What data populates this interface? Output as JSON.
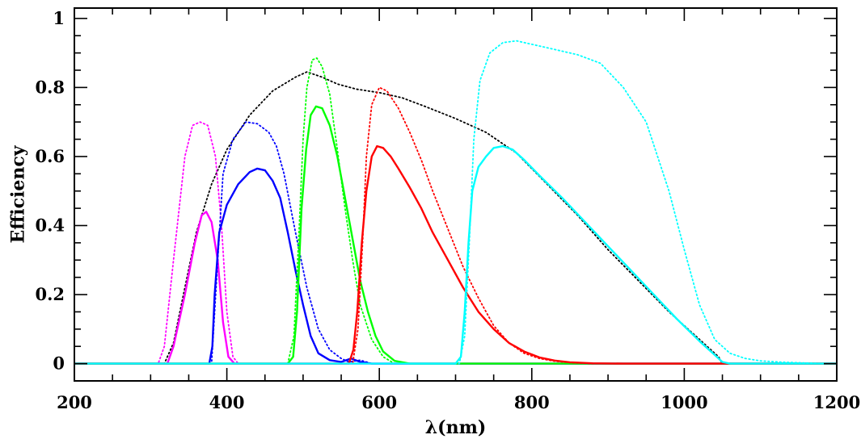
{
  "chart_data": {
    "type": "line",
    "title": "",
    "xlabel": "λ(nm)",
    "ylabel": "Efficiency",
    "xlim": [
      200,
      1200
    ],
    "ylim": [
      -0.05,
      1.03
    ],
    "x_ticks": [
      200,
      400,
      600,
      800,
      1000,
      1200
    ],
    "x_tick_labels": [
      "200",
      "400",
      "600",
      "800",
      "1000",
      "1200"
    ],
    "y_ticks": [
      0,
      0.2,
      0.4,
      0.6,
      0.8,
      1
    ],
    "y_tick_labels": [
      "0",
      "0.2",
      "0.4",
      "0.6",
      "0.8",
      "1"
    ],
    "grid": false,
    "legend": "none",
    "series": [
      {
        "color": "#000000",
        "style": "dotted",
        "points": [
          [
            200,
            0
          ],
          [
            318,
            0
          ],
          [
            330,
            0.06
          ],
          [
            345,
            0.22
          ],
          [
            360,
            0.38
          ],
          [
            380,
            0.52
          ],
          [
            400,
            0.62
          ],
          [
            430,
            0.72
          ],
          [
            460,
            0.79
          ],
          [
            490,
            0.83
          ],
          [
            505,
            0.845
          ],
          [
            525,
            0.83
          ],
          [
            545,
            0.81
          ],
          [
            570,
            0.795
          ],
          [
            600,
            0.785
          ],
          [
            630,
            0.77
          ],
          [
            660,
            0.745
          ],
          [
            700,
            0.71
          ],
          [
            740,
            0.67
          ],
          [
            780,
            0.61
          ],
          [
            820,
            0.52
          ],
          [
            860,
            0.43
          ],
          [
            900,
            0.33
          ],
          [
            940,
            0.24
          ],
          [
            980,
            0.15
          ],
          [
            1020,
            0.07
          ],
          [
            1045,
            0.02
          ],
          [
            1050,
            0
          ]
        ]
      },
      {
        "color": "#ff00ff",
        "style": "dotted",
        "points": [
          [
            200,
            0
          ],
          [
            310,
            0
          ],
          [
            318,
            0.05
          ],
          [
            330,
            0.3
          ],
          [
            345,
            0.6
          ],
          [
            355,
            0.69
          ],
          [
            365,
            0.7
          ],
          [
            375,
            0.69
          ],
          [
            385,
            0.6
          ],
          [
            393,
            0.4
          ],
          [
            400,
            0.15
          ],
          [
            408,
            0.02
          ],
          [
            415,
            0
          ],
          [
            1200,
            0
          ]
        ]
      },
      {
        "color": "#ff00ff",
        "style": "solid",
        "points": [
          [
            200,
            0
          ],
          [
            322,
            0
          ],
          [
            330,
            0.05
          ],
          [
            345,
            0.2
          ],
          [
            358,
            0.35
          ],
          [
            367,
            0.43
          ],
          [
            373,
            0.44
          ],
          [
            380,
            0.41
          ],
          [
            388,
            0.3
          ],
          [
            395,
            0.12
          ],
          [
            402,
            0.02
          ],
          [
            410,
            0
          ],
          [
            1200,
            0
          ]
        ]
      },
      {
        "color": "#0000ff",
        "style": "dotted",
        "points": [
          [
            200,
            0
          ],
          [
            380,
            0
          ],
          [
            388,
            0.3
          ],
          [
            395,
            0.55
          ],
          [
            408,
            0.65
          ],
          [
            425,
            0.7
          ],
          [
            440,
            0.695
          ],
          [
            455,
            0.67
          ],
          [
            465,
            0.63
          ],
          [
            475,
            0.55
          ],
          [
            490,
            0.38
          ],
          [
            505,
            0.22
          ],
          [
            520,
            0.1
          ],
          [
            535,
            0.04
          ],
          [
            550,
            0.015
          ],
          [
            560,
            0.005
          ],
          [
            575,
            0.01
          ],
          [
            590,
            0
          ],
          [
            1200,
            0
          ]
        ]
      },
      {
        "color": "#0000ff",
        "style": "solid",
        "points": [
          [
            200,
            0
          ],
          [
            377,
            0
          ],
          [
            381,
            0.05
          ],
          [
            384,
            0.2
          ],
          [
            390,
            0.38
          ],
          [
            400,
            0.46
          ],
          [
            415,
            0.52
          ],
          [
            430,
            0.555
          ],
          [
            440,
            0.565
          ],
          [
            450,
            0.56
          ],
          [
            460,
            0.53
          ],
          [
            470,
            0.48
          ],
          [
            480,
            0.38
          ],
          [
            490,
            0.27
          ],
          [
            500,
            0.17
          ],
          [
            510,
            0.08
          ],
          [
            520,
            0.03
          ],
          [
            535,
            0.01
          ],
          [
            550,
            0.005
          ],
          [
            563,
            0.015
          ],
          [
            575,
            0.005
          ],
          [
            590,
            0
          ],
          [
            1200,
            0
          ]
        ]
      },
      {
        "color": "#00ff00",
        "style": "dotted",
        "points": [
          [
            200,
            0
          ],
          [
            480,
            0
          ],
          [
            488,
            0.08
          ],
          [
            495,
            0.4
          ],
          [
            500,
            0.65
          ],
          [
            505,
            0.8
          ],
          [
            512,
            0.88
          ],
          [
            518,
            0.885
          ],
          [
            525,
            0.86
          ],
          [
            535,
            0.78
          ],
          [
            545,
            0.62
          ],
          [
            555,
            0.45
          ],
          [
            565,
            0.3
          ],
          [
            575,
            0.17
          ],
          [
            590,
            0.07
          ],
          [
            605,
            0.02
          ],
          [
            620,
            0
          ],
          [
            1200,
            0
          ]
        ]
      },
      {
        "color": "#00ff00",
        "style": "solid",
        "points": [
          [
            200,
            0
          ],
          [
            480,
            0
          ],
          [
            487,
            0.02
          ],
          [
            492,
            0.15
          ],
          [
            498,
            0.45
          ],
          [
            504,
            0.62
          ],
          [
            510,
            0.72
          ],
          [
            517,
            0.745
          ],
          [
            525,
            0.74
          ],
          [
            535,
            0.69
          ],
          [
            545,
            0.6
          ],
          [
            555,
            0.48
          ],
          [
            565,
            0.36
          ],
          [
            575,
            0.24
          ],
          [
            585,
            0.15
          ],
          [
            595,
            0.08
          ],
          [
            605,
            0.035
          ],
          [
            620,
            0.008
          ],
          [
            640,
            0
          ],
          [
            1200,
            0
          ]
        ]
      },
      {
        "color": "#ff0000",
        "style": "dotted",
        "points": [
          [
            200,
            0
          ],
          [
            565,
            0
          ],
          [
            572,
            0.1
          ],
          [
            578,
            0.35
          ],
          [
            583,
            0.6
          ],
          [
            590,
            0.75
          ],
          [
            600,
            0.8
          ],
          [
            610,
            0.79
          ],
          [
            625,
            0.74
          ],
          [
            640,
            0.67
          ],
          [
            655,
            0.59
          ],
          [
            670,
            0.5
          ],
          [
            690,
            0.39
          ],
          [
            710,
            0.28
          ],
          [
            730,
            0.19
          ],
          [
            750,
            0.11
          ],
          [
            770,
            0.06
          ],
          [
            790,
            0.03
          ],
          [
            810,
            0.015
          ],
          [
            830,
            0.007
          ],
          [
            850,
            0.003
          ],
          [
            880,
            0
          ],
          [
            1200,
            0
          ]
        ]
      },
      {
        "color": "#ff0000",
        "style": "solid",
        "points": [
          [
            200,
            0
          ],
          [
            560,
            0
          ],
          [
            566,
            0.04
          ],
          [
            571,
            0.15
          ],
          [
            577,
            0.35
          ],
          [
            583,
            0.5
          ],
          [
            590,
            0.6
          ],
          [
            597,
            0.63
          ],
          [
            605,
            0.625
          ],
          [
            615,
            0.6
          ],
          [
            625,
            0.565
          ],
          [
            640,
            0.51
          ],
          [
            655,
            0.45
          ],
          [
            670,
            0.38
          ],
          [
            690,
            0.3
          ],
          [
            710,
            0.22
          ],
          [
            730,
            0.15
          ],
          [
            750,
            0.1
          ],
          [
            770,
            0.06
          ],
          [
            790,
            0.035
          ],
          [
            810,
            0.018
          ],
          [
            830,
            0.009
          ],
          [
            850,
            0.004
          ],
          [
            880,
            0.001
          ],
          [
            920,
            0
          ],
          [
            1200,
            0
          ]
        ]
      },
      {
        "color": "#00ffff",
        "style": "dotted",
        "points": [
          [
            200,
            0
          ],
          [
            705,
            0
          ],
          [
            712,
            0.08
          ],
          [
            718,
            0.35
          ],
          [
            724,
            0.65
          ],
          [
            732,
            0.82
          ],
          [
            745,
            0.9
          ],
          [
            762,
            0.93
          ],
          [
            780,
            0.935
          ],
          [
            800,
            0.925
          ],
          [
            830,
            0.91
          ],
          [
            860,
            0.895
          ],
          [
            890,
            0.87
          ],
          [
            920,
            0.8
          ],
          [
            950,
            0.7
          ],
          [
            980,
            0.5
          ],
          [
            1000,
            0.33
          ],
          [
            1020,
            0.17
          ],
          [
            1040,
            0.07
          ],
          [
            1060,
            0.03
          ],
          [
            1080,
            0.015
          ],
          [
            1100,
            0.008
          ],
          [
            1130,
            0.004
          ],
          [
            1160,
            0.002
          ],
          [
            1190,
            0
          ],
          [
            1200,
            0
          ]
        ]
      },
      {
        "color": "#00ffff",
        "style": "solid",
        "points": [
          [
            200,
            0
          ],
          [
            700,
            0
          ],
          [
            707,
            0.02
          ],
          [
            712,
            0.15
          ],
          [
            717,
            0.35
          ],
          [
            722,
            0.5
          ],
          [
            730,
            0.57
          ],
          [
            740,
            0.6
          ],
          [
            750,
            0.625
          ],
          [
            762,
            0.63
          ],
          [
            775,
            0.62
          ],
          [
            790,
            0.59
          ],
          [
            810,
            0.545
          ],
          [
            840,
            0.48
          ],
          [
            870,
            0.41
          ],
          [
            900,
            0.34
          ],
          [
            930,
            0.27
          ],
          [
            960,
            0.2
          ],
          [
            990,
            0.13
          ],
          [
            1020,
            0.065
          ],
          [
            1040,
            0.025
          ],
          [
            1050,
            0.005
          ],
          [
            1060,
            0
          ],
          [
            1200,
            0
          ]
        ]
      }
    ]
  }
}
